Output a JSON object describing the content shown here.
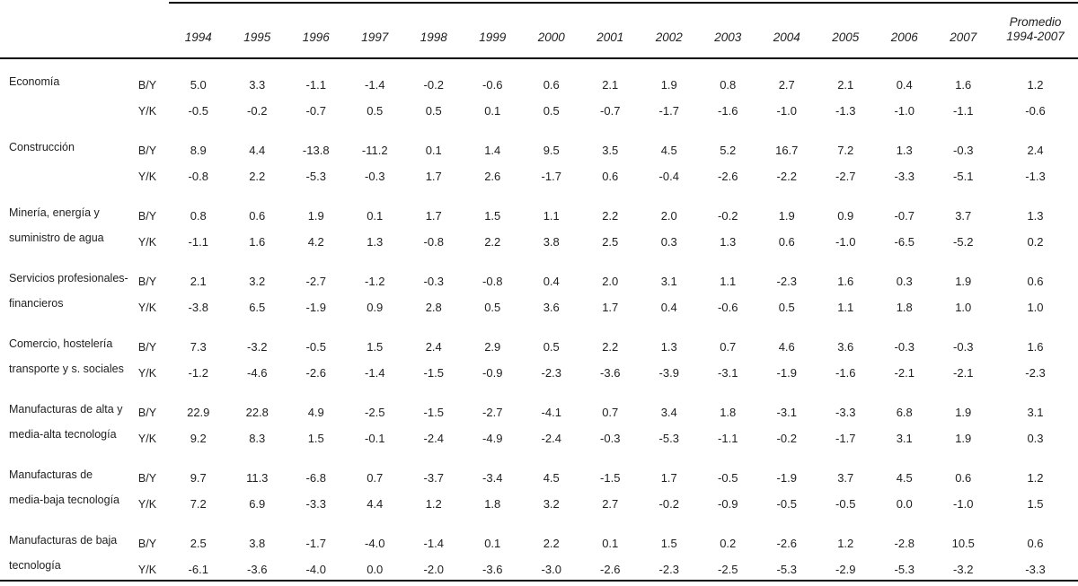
{
  "table": {
    "colors": {
      "background": "#ffffff",
      "text": "#1f1f1f",
      "rule": "#000000"
    },
    "year_columns": [
      "1994",
      "1995",
      "1996",
      "1997",
      "1998",
      "1999",
      "2000",
      "2001",
      "2002",
      "2003",
      "2004",
      "2005",
      "2006",
      "2007"
    ],
    "promedio_column": {
      "line1": "Promedio",
      "line2": "1994-2007"
    },
    "ratio_row_labels": [
      "B/Y",
      "Y/K"
    ],
    "groups": [
      {
        "name_lines": [
          "Economía"
        ],
        "rows": [
          {
            "label": "B/Y",
            "values": [
              "5.0",
              "3.3",
              "-1.1",
              "-1.4",
              "-0.2",
              "-0.6",
              "0.6",
              "2.1",
              "1.9",
              "0.8",
              "2.7",
              "2.1",
              "0.4",
              "1.6"
            ],
            "promedio": "1.2"
          },
          {
            "label": "Y/K",
            "values": [
              "-0.5",
              "-0.2",
              "-0.7",
              "0.5",
              "0.5",
              "0.1",
              "0.5",
              "-0.7",
              "-1.7",
              "-1.6",
              "-1.0",
              "-1.3",
              "-1.0",
              "-1.1"
            ],
            "promedio": "-0.6"
          }
        ]
      },
      {
        "name_lines": [
          "Construcción"
        ],
        "rows": [
          {
            "label": "B/Y",
            "values": [
              "8.9",
              "4.4",
              "-13.8",
              "-11.2",
              "0.1",
              "1.4",
              "9.5",
              "3.5",
              "4.5",
              "5.2",
              "16.7",
              "7.2",
              "1.3",
              "-0.3"
            ],
            "promedio": "2.4"
          },
          {
            "label": "Y/K",
            "values": [
              "-0.8",
              "2.2",
              "-5.3",
              "-0.3",
              "1.7",
              "2.6",
              "-1.7",
              "0.6",
              "-0.4",
              "-2.6",
              "-2.2",
              "-2.7",
              "-3.3",
              "-5.1"
            ],
            "promedio": "-1.3"
          }
        ]
      },
      {
        "name_lines": [
          "Minería, energía y",
          "suministro de agua"
        ],
        "rows": [
          {
            "label": "B/Y",
            "values": [
              "0.8",
              "0.6",
              "1.9",
              "0.1",
              "1.7",
              "1.5",
              "1.1",
              "2.2",
              "2.0",
              "-0.2",
              "1.9",
              "0.9",
              "-0.7",
              "3.7"
            ],
            "promedio": "1.3"
          },
          {
            "label": "Y/K",
            "values": [
              "-1.1",
              "1.6",
              "4.2",
              "1.3",
              "-0.8",
              "2.2",
              "3.8",
              "2.5",
              "0.3",
              "1.3",
              "0.6",
              "-1.0",
              "-6.5",
              "-5.2"
            ],
            "promedio": "0.2"
          }
        ]
      },
      {
        "name_lines": [
          "Servicios profesionales-",
          "financieros"
        ],
        "rows": [
          {
            "label": "B/Y",
            "values": [
              "2.1",
              "3.2",
              "-2.7",
              "-1.2",
              "-0.3",
              "-0.8",
              "0.4",
              "2.0",
              "3.1",
              "1.1",
              "-2.3",
              "1.6",
              "0.3",
              "1.9"
            ],
            "promedio": "0.6"
          },
          {
            "label": "Y/K",
            "values": [
              "-3.8",
              "6.5",
              "-1.9",
              "0.9",
              "2.8",
              "0.5",
              "3.6",
              "1.7",
              "0.4",
              "-0.6",
              "0.5",
              "1.1",
              "1.8",
              "1.0"
            ],
            "promedio": "1.0"
          }
        ]
      },
      {
        "name_lines": [
          "Comercio, hostelería",
          "transporte y s. sociales"
        ],
        "rows": [
          {
            "label": "B/Y",
            "values": [
              "7.3",
              "-3.2",
              "-0.5",
              "1.5",
              "2.4",
              "2.9",
              "0.5",
              "2.2",
              "1.3",
              "0.7",
              "4.6",
              "3.6",
              "-0.3",
              "-0.3"
            ],
            "promedio": "1.6"
          },
          {
            "label": "Y/K",
            "values": [
              "-1.2",
              "-4.6",
              "-2.6",
              "-1.4",
              "-1.5",
              "-0.9",
              "-2.3",
              "-3.6",
              "-3.9",
              "-3.1",
              "-1.9",
              "-1.6",
              "-2.1",
              "-2.1"
            ],
            "promedio": "-2.3"
          }
        ]
      },
      {
        "name_lines": [
          "Manufacturas de alta y",
          "media-alta tecnología"
        ],
        "rows": [
          {
            "label": "B/Y",
            "values": [
              "22.9",
              "22.8",
              "4.9",
              "-2.5",
              "-1.5",
              "-2.7",
              "-4.1",
              "0.7",
              "3.4",
              "1.8",
              "-3.1",
              "-3.3",
              "6.8",
              "1.9"
            ],
            "promedio": "3.1"
          },
          {
            "label": "Y/K",
            "values": [
              "9.2",
              "8.3",
              "1.5",
              "-0.1",
              "-2.4",
              "-4.9",
              "-2.4",
              "-0.3",
              "-5.3",
              "-1.1",
              "-0.2",
              "-1.7",
              "3.1",
              "1.9"
            ],
            "promedio": "0.3"
          }
        ]
      },
      {
        "name_lines": [
          "Manufacturas de",
          "media-baja tecnología"
        ],
        "rows": [
          {
            "label": "B/Y",
            "values": [
              "9.7",
              "11.3",
              "-6.8",
              "0.7",
              "-3.7",
              "-3.4",
              "4.5",
              "-1.5",
              "1.7",
              "-0.5",
              "-1.9",
              "3.7",
              "4.5",
              "0.6"
            ],
            "promedio": "1.2"
          },
          {
            "label": "Y/K",
            "values": [
              "7.2",
              "6.9",
              "-3.3",
              "4.4",
              "1.2",
              "1.8",
              "3.2",
              "2.7",
              "-0.2",
              "-0.9",
              "-0.5",
              "-0.5",
              "0.0",
              "-1.0"
            ],
            "promedio": "1.5"
          }
        ]
      },
      {
        "name_lines": [
          "Manufacturas de baja",
          "tecnología"
        ],
        "rows": [
          {
            "label": "B/Y",
            "values": [
              "2.5",
              "3.8",
              "-1.7",
              "-4.0",
              "-1.4",
              "0.1",
              "2.2",
              "0.1",
              "1.5",
              "0.2",
              "-2.6",
              "1.2",
              "-2.8",
              "10.5"
            ],
            "promedio": "0.6"
          },
          {
            "label": "Y/K",
            "values": [
              "-6.1",
              "-3.6",
              "-4.0",
              "0.0",
              "-2.0",
              "-3.6",
              "-3.0",
              "-2.6",
              "-2.3",
              "-2.5",
              "-5.3",
              "-2.9",
              "-5.3",
              "-3.2"
            ],
            "promedio": "-3.3"
          }
        ]
      }
    ]
  }
}
